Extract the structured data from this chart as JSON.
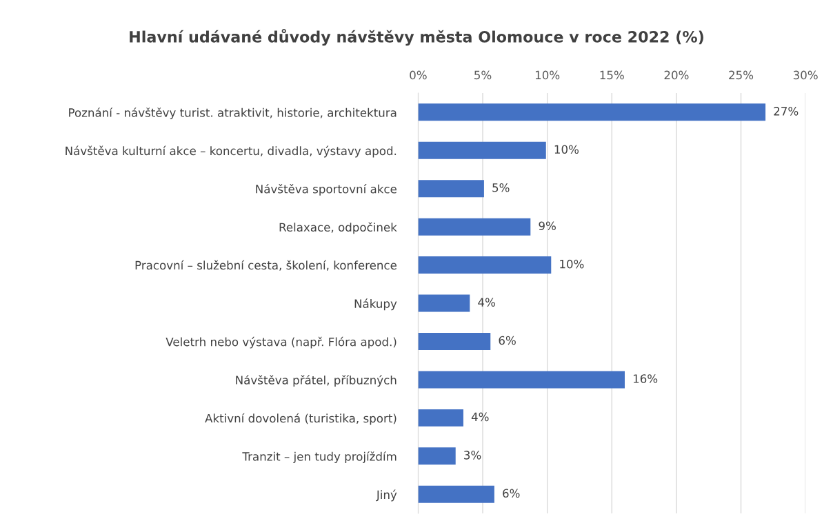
{
  "chart_data": {
    "type": "bar",
    "orientation": "horizontal",
    "title": "Hlavní udávané důvody návštěvy města Olomouce v roce 2022 (%)",
    "categories": [
      "Poznání - návštěvy turist. atraktivit, historie, architektura",
      "Návštěva kulturní akce – koncertu, divadla, výstavy apod.",
      "Návštěva sportovní akce",
      "Relaxace, odpočinek",
      "Pracovní – služební cesta, školení, konference",
      "Nákupy",
      "Veletrh nebo výstava (např. Flóra apod.)",
      "Návštěva přátel, příbuzných",
      "Aktivní dovolená (turistika, sport)",
      "Tranzit – jen tudy projíždím",
      "Jiný"
    ],
    "values": [
      26.9,
      9.9,
      5.1,
      8.7,
      10.3,
      4.0,
      5.6,
      16.0,
      3.5,
      2.9,
      5.9
    ],
    "value_labels": [
      "27%",
      "10%",
      "5%",
      "9%",
      "10%",
      "4%",
      "6%",
      "16%",
      "4%",
      "3%",
      "6%"
    ],
    "color": "#4472c4",
    "xlim": [
      0,
      30
    ],
    "xticks": [
      {
        "value": 0,
        "label": "0%"
      },
      {
        "value": 5,
        "label": "5%"
      },
      {
        "value": 10,
        "label": "10%"
      },
      {
        "value": 15,
        "label": "15%"
      },
      {
        "value": 20,
        "label": "20%"
      },
      {
        "value": 25,
        "label": "25%"
      },
      {
        "value": 30,
        "label": "30%"
      }
    ],
    "grid": "x"
  }
}
